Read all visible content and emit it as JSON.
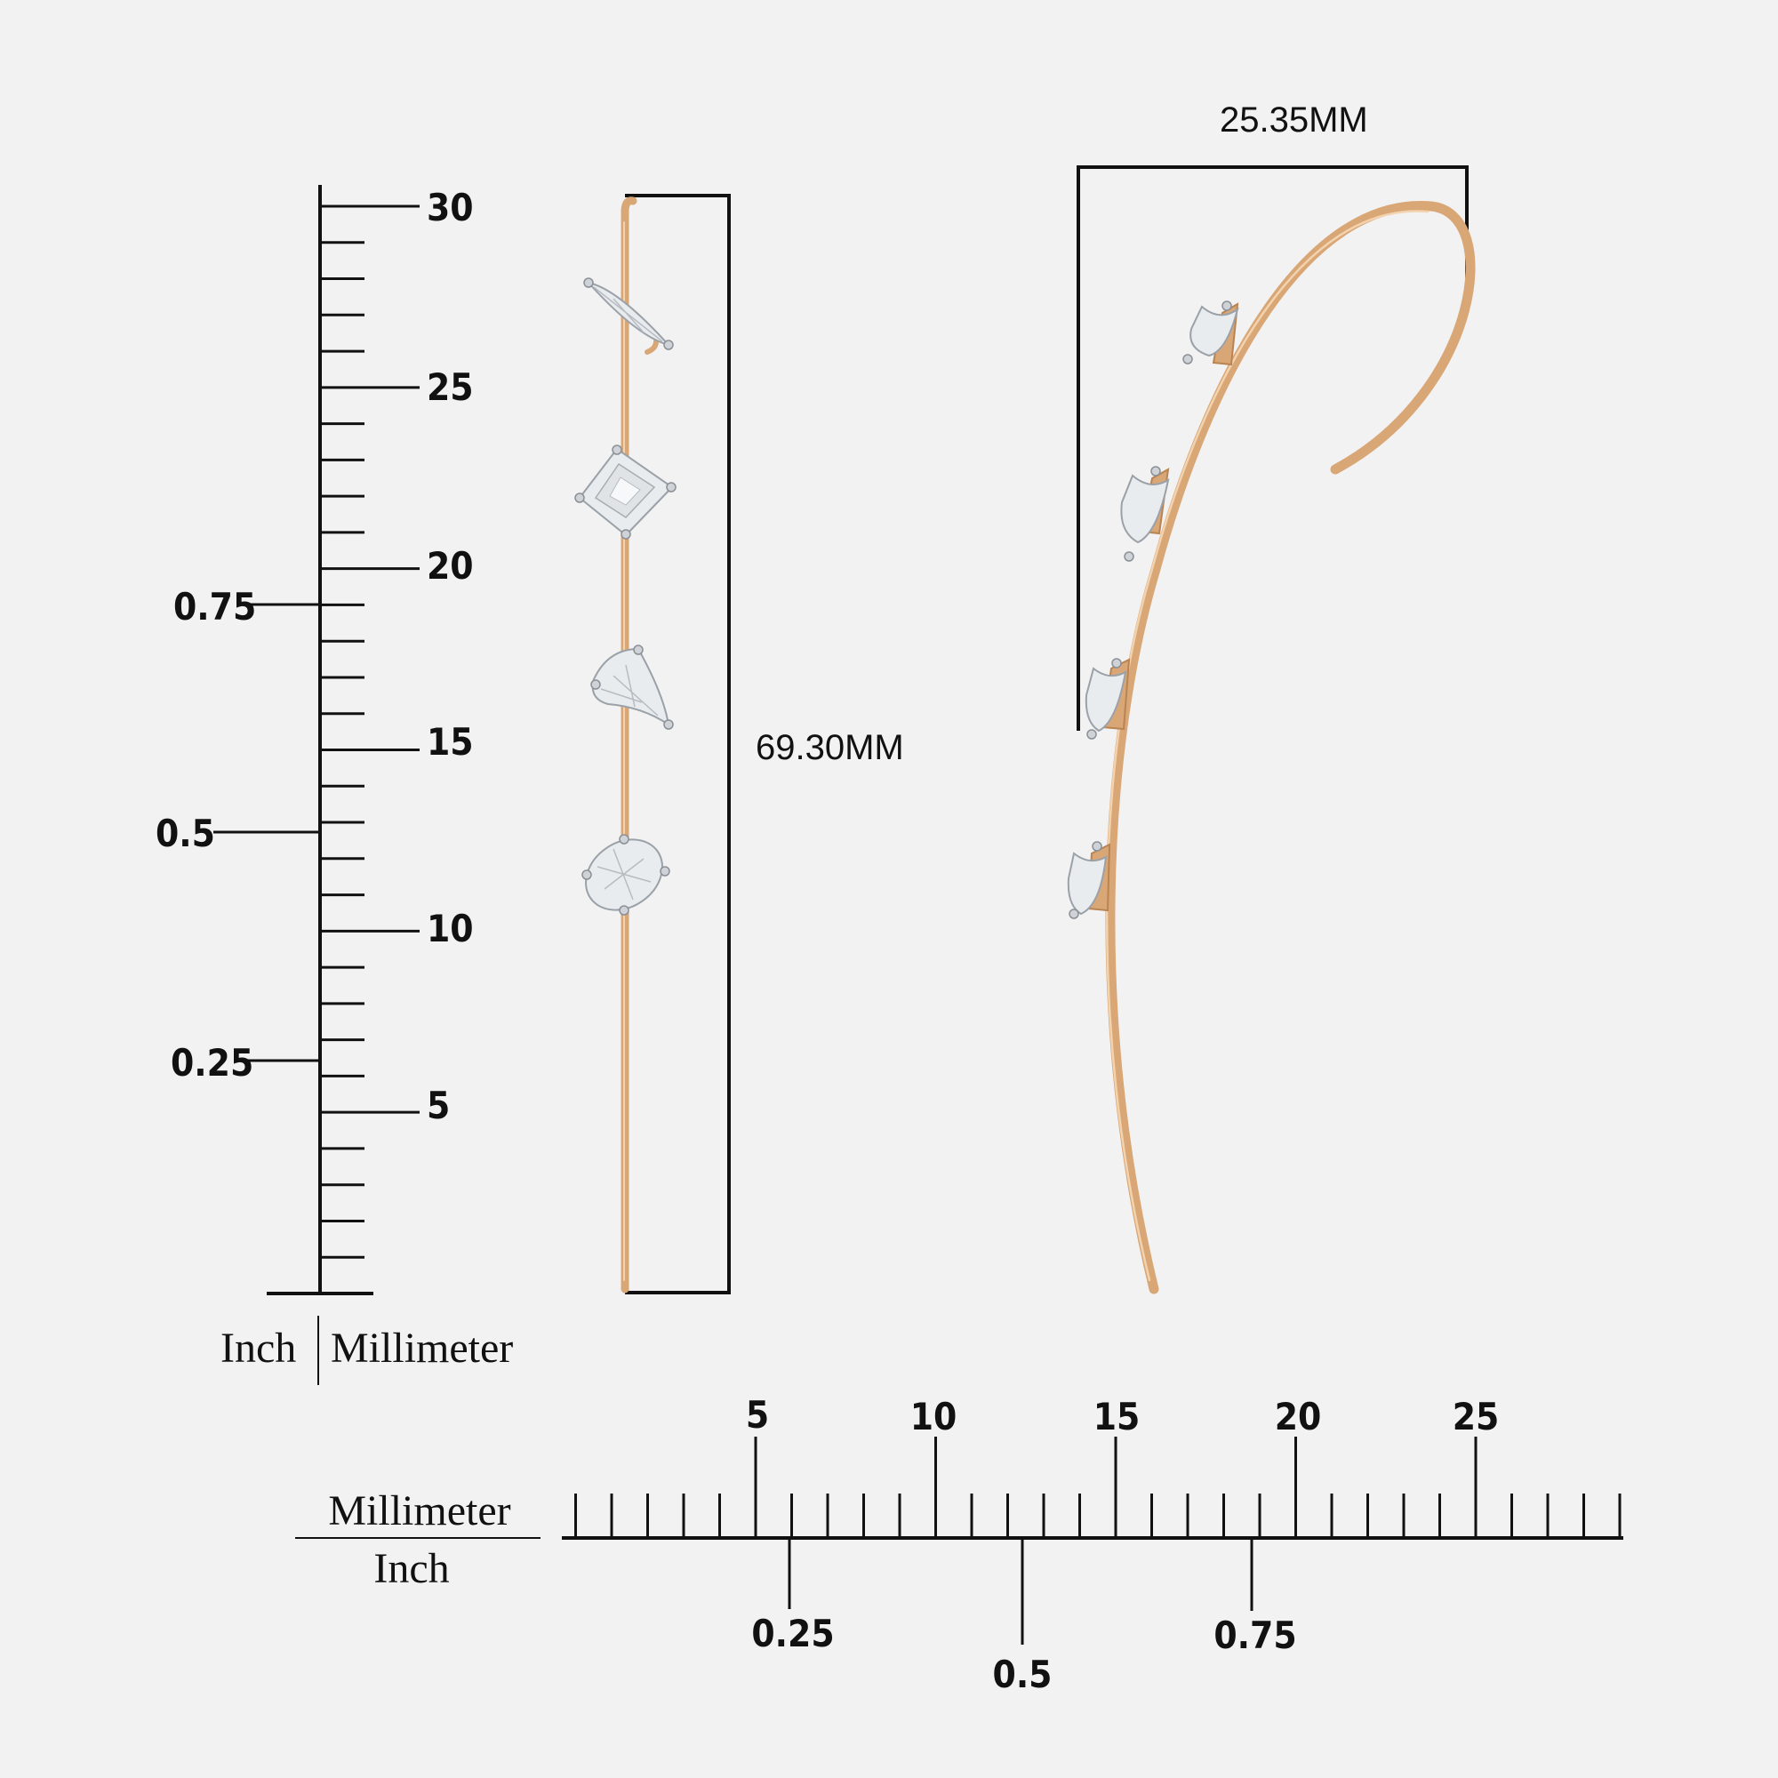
{
  "vertical_ruler": {
    "mm_labels": [
      "30",
      "25",
      "20",
      "15",
      "10",
      "5"
    ],
    "inch_labels": [
      "0.75",
      "0.5",
      "0.25"
    ],
    "unit_left": "Inch",
    "unit_right": "Millimeter"
  },
  "horizontal_ruler": {
    "mm_labels": [
      "5",
      "10",
      "15",
      "20",
      "25"
    ],
    "inch_labels": [
      "0.25",
      "0.5",
      "0.75"
    ],
    "unit_top": "Millimeter",
    "unit_bottom": "Inch"
  },
  "dimensions": {
    "length": "69.30MM",
    "width": "25.35MM"
  },
  "product": {
    "metal_color": "#d9a676",
    "front_stones": [
      "marquise",
      "emerald-cut",
      "pear",
      "oval"
    ],
    "side_stones_count": 4
  }
}
